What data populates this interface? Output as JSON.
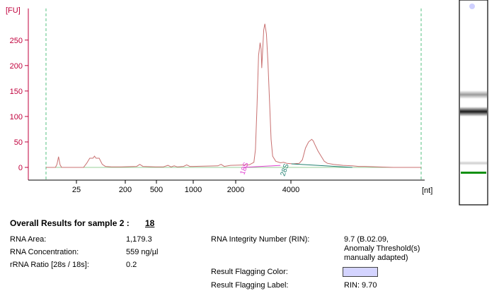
{
  "chart_data": {
    "type": "line",
    "xlabel": "[nt]",
    "ylabel": "[FU]",
    "x_ticks": [
      "25",
      "200",
      "500",
      "1000",
      "2000",
      "4000"
    ],
    "y_ticks": [
      0,
      50,
      100,
      150,
      200,
      250
    ],
    "ylim": [
      -28,
      312
    ],
    "peaks": [
      {
        "label": "18S",
        "x": "2000",
        "height": 280
      },
      {
        "label": "28S",
        "x": "4000",
        "height": 55
      }
    ],
    "trace": [
      [
        0,
        0
      ],
      [
        6,
        0
      ],
      [
        7,
        6
      ],
      [
        8,
        21
      ],
      [
        9,
        5
      ],
      [
        10,
        0
      ],
      [
        24,
        0
      ],
      [
        26,
        8
      ],
      [
        28,
        18
      ],
      [
        30,
        18
      ],
      [
        31,
        22
      ],
      [
        32,
        18
      ],
      [
        34,
        18
      ],
      [
        36,
        6
      ],
      [
        38,
        2
      ],
      [
        42,
        1
      ],
      [
        48,
        1
      ],
      [
        58,
        2
      ],
      [
        60,
        6
      ],
      [
        62,
        2
      ],
      [
        70,
        1
      ],
      [
        75,
        1
      ],
      [
        78,
        4
      ],
      [
        80,
        1
      ],
      [
        82,
        3
      ],
      [
        84,
        1
      ],
      [
        88,
        2
      ],
      [
        90,
        5
      ],
      [
        92,
        2
      ],
      [
        94,
        2
      ],
      [
        110,
        3
      ],
      [
        112,
        6
      ],
      [
        114,
        2
      ],
      [
        118,
        4
      ],
      [
        130,
        5
      ],
      [
        133,
        10
      ],
      [
        134,
        35
      ],
      [
        135,
        120
      ],
      [
        136,
        220
      ],
      [
        137,
        245
      ],
      [
        137.6,
        232
      ],
      [
        138,
        195
      ],
      [
        138.6,
        230
      ],
      [
        139.3,
        270
      ],
      [
        140,
        282
      ],
      [
        141,
        262
      ],
      [
        142,
        205
      ],
      [
        143,
        130
      ],
      [
        144,
        55
      ],
      [
        145,
        22
      ],
      [
        147,
        12
      ],
      [
        150,
        9
      ],
      [
        152,
        10
      ],
      [
        154,
        8
      ],
      [
        158,
        7
      ],
      [
        162,
        8
      ],
      [
        164,
        15
      ],
      [
        166,
        38
      ],
      [
        168,
        50
      ],
      [
        170,
        55
      ],
      [
        171,
        52
      ],
      [
        172,
        45
      ],
      [
        174,
        32
      ],
      [
        176,
        22
      ],
      [
        178,
        12
      ],
      [
        180,
        8
      ],
      [
        184,
        6
      ],
      [
        190,
        4
      ],
      [
        196,
        3
      ],
      [
        200,
        2
      ],
      [
        204,
        2
      ],
      [
        212,
        1
      ],
      [
        222,
        0
      ],
      [
        232,
        0
      ],
      [
        240,
        0
      ]
    ],
    "baseline_marks": [
      {
        "name": "18S",
        "color": "#e040d0"
      },
      {
        "name": "28S",
        "color": "#1f7f6f"
      }
    ]
  },
  "gel": {
    "marker_color": "#cfd0ff",
    "lower_marker_color": "#109010"
  },
  "results": {
    "heading": "Overall Results for sample 2 :",
    "sample_number": "18",
    "left": [
      {
        "label": "RNA Area:",
        "value": "1,179.3"
      },
      {
        "label": "RNA Concentration:",
        "value": "559 ng/µl"
      },
      {
        "label": "rRNA Ratio [28s / 18s]:",
        "value": "0.2"
      }
    ],
    "rin_label": "RNA Integrity Number (RIN):",
    "rin_value_lines": [
      "9.7  (B.02.09,",
      "Anomaly Threshold(s)",
      "manually adapted)"
    ],
    "flag_color_label": "Result Flagging Color:",
    "flag_color": "#d4d4ff",
    "flag_label_label": "Result Flagging Label:",
    "flag_label_value": "RIN: 9.70"
  }
}
